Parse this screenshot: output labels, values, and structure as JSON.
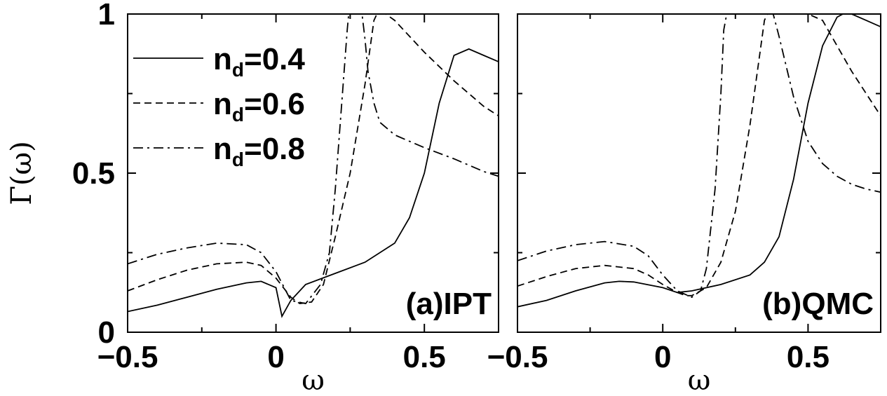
{
  "chart_data": [
    {
      "type": "line",
      "panel_label": "(a)IPT",
      "xlabel": "ω",
      "ylabel": "Γ(ω)",
      "xlim": [
        -0.5,
        0.75
      ],
      "ylim": [
        0,
        1
      ],
      "x_tick_labels": [
        "−0.5",
        "0",
        "0.5"
      ],
      "y_tick_labels": [
        "0",
        "0.5",
        "1"
      ],
      "legend": {
        "placement": "top-left",
        "prefix": "n",
        "subscript": "d"
      },
      "series": [
        {
          "name": "=0.4",
          "dash": "solid",
          "x": [
            -0.5,
            -0.4,
            -0.3,
            -0.2,
            -0.1,
            -0.05,
            0.0,
            0.02,
            0.05,
            0.1,
            0.2,
            0.3,
            0.4,
            0.45,
            0.5,
            0.55,
            0.6,
            0.65,
            0.7,
            0.75
          ],
          "y": [
            0.065,
            0.085,
            0.11,
            0.135,
            0.155,
            0.16,
            0.14,
            0.05,
            0.1,
            0.15,
            0.185,
            0.22,
            0.28,
            0.36,
            0.5,
            0.72,
            0.87,
            0.89,
            0.87,
            0.85
          ]
        },
        {
          "name": "=0.6",
          "dash": "dashed",
          "x": [
            -0.5,
            -0.4,
            -0.3,
            -0.2,
            -0.1,
            -0.05,
            0.0,
            0.05,
            0.08,
            0.12,
            0.16,
            0.2,
            0.25,
            0.3,
            0.33,
            0.34,
            0.37,
            0.4,
            0.5,
            0.6,
            0.7,
            0.75
          ],
          "y": [
            0.13,
            0.165,
            0.195,
            0.215,
            0.22,
            0.21,
            0.17,
            0.11,
            0.09,
            0.095,
            0.15,
            0.3,
            0.5,
            0.78,
            0.98,
            1.0,
            1.0,
            0.98,
            0.88,
            0.79,
            0.71,
            0.68
          ]
        },
        {
          "name": "=0.8",
          "dash": "dash-dot",
          "x": [
            -0.5,
            -0.4,
            -0.3,
            -0.2,
            -0.1,
            -0.05,
            0.0,
            0.05,
            0.1,
            0.15,
            0.18,
            0.2,
            0.22,
            0.24,
            0.245,
            0.26,
            0.29,
            0.3,
            0.31,
            0.33,
            0.35,
            0.4,
            0.5,
            0.6,
            0.7,
            0.75
          ],
          "y": [
            0.215,
            0.245,
            0.265,
            0.28,
            0.275,
            0.25,
            0.19,
            0.1,
            0.09,
            0.15,
            0.25,
            0.45,
            0.7,
            0.95,
            1.0,
            1.0,
            1.0,
            0.92,
            0.82,
            0.72,
            0.66,
            0.62,
            0.58,
            0.545,
            0.505,
            0.49
          ]
        }
      ]
    },
    {
      "type": "line",
      "panel_label": "(b)QMC",
      "xlabel": "ω",
      "ylabel": "",
      "xlim": [
        -0.5,
        0.75
      ],
      "ylim": [
        0,
        1
      ],
      "x_tick_labels": [
        "−0.5",
        "0",
        "0.5"
      ],
      "y_tick_labels": [],
      "series": [
        {
          "name": "=0.4",
          "dash": "solid",
          "x": [
            -0.5,
            -0.4,
            -0.3,
            -0.2,
            -0.15,
            -0.1,
            0.0,
            0.05,
            0.1,
            0.2,
            0.3,
            0.35,
            0.4,
            0.45,
            0.5,
            0.55,
            0.6,
            0.62,
            0.65,
            0.7,
            0.75
          ],
          "y": [
            0.08,
            0.1,
            0.13,
            0.155,
            0.16,
            0.158,
            0.14,
            0.125,
            0.13,
            0.15,
            0.18,
            0.22,
            0.3,
            0.48,
            0.72,
            0.9,
            0.99,
            1.0,
            1.0,
            0.98,
            0.96
          ]
        },
        {
          "name": "=0.6",
          "dash": "dashed",
          "x": [
            -0.5,
            -0.4,
            -0.3,
            -0.2,
            -0.1,
            -0.05,
            0.0,
            0.05,
            0.08,
            0.1,
            0.15,
            0.2,
            0.25,
            0.3,
            0.35,
            0.36,
            0.4,
            0.5,
            0.55,
            0.6,
            0.65,
            0.7,
            0.75
          ],
          "y": [
            0.145,
            0.175,
            0.2,
            0.21,
            0.2,
            0.18,
            0.15,
            0.125,
            0.115,
            0.115,
            0.14,
            0.22,
            0.38,
            0.65,
            0.98,
            1.0,
            1.0,
            1.0,
            0.98,
            0.9,
            0.82,
            0.75,
            0.68
          ]
        },
        {
          "name": "=0.8",
          "dash": "dash-dot",
          "x": [
            -0.5,
            -0.4,
            -0.3,
            -0.2,
            -0.1,
            -0.05,
            0.0,
            0.05,
            0.1,
            0.13,
            0.15,
            0.18,
            0.2,
            0.21,
            0.22,
            0.3,
            0.38,
            0.4,
            0.45,
            0.5,
            0.55,
            0.6,
            0.65,
            0.7,
            0.75
          ],
          "y": [
            0.225,
            0.255,
            0.275,
            0.285,
            0.27,
            0.24,
            0.18,
            0.13,
            0.11,
            0.13,
            0.2,
            0.45,
            0.75,
            0.95,
            1.0,
            1.0,
            1.0,
            0.93,
            0.74,
            0.6,
            0.53,
            0.49,
            0.465,
            0.45,
            0.44
          ]
        }
      ]
    }
  ]
}
